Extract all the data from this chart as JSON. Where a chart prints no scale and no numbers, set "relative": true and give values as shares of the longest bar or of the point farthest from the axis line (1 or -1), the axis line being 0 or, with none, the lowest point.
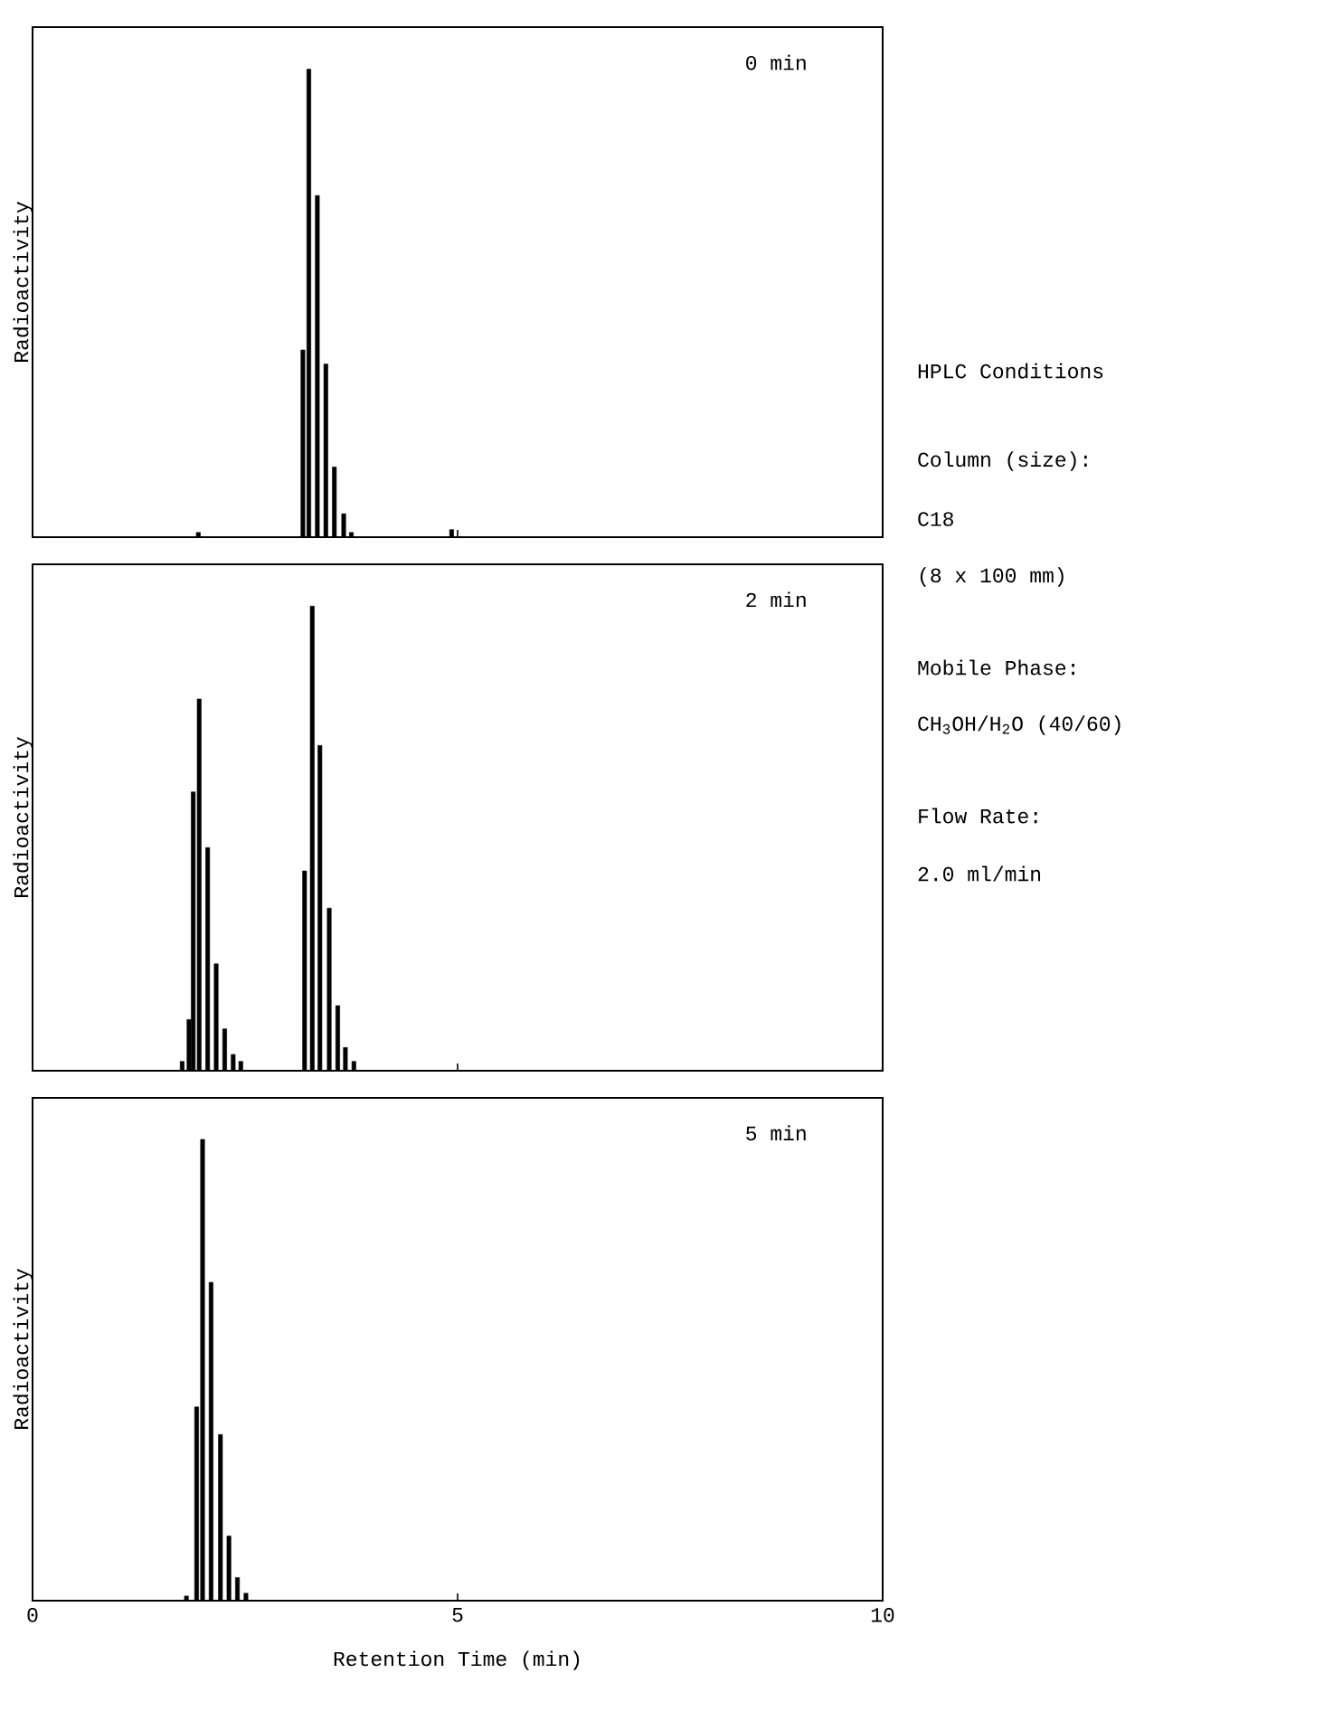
{
  "chart_data": [
    {
      "type": "bar",
      "relative": true,
      "ylabel": "Radioactivity",
      "annotations": [
        "0 min"
      ],
      "color": "#000000",
      "xlim": [
        0,
        10
      ],
      "xticks": [
        0,
        5,
        10
      ],
      "tick_labels": false,
      "x": [
        1.95,
        3.18,
        3.25,
        3.35,
        3.45,
        3.55,
        3.66,
        3.75,
        4.93
      ],
      "values": [
        0.01,
        0.4,
        1,
        0.73,
        0.37,
        0.15,
        0.05,
        0.01,
        0.016
      ]
    },
    {
      "type": "bar",
      "relative": true,
      "ylabel": "Radioactivity",
      "annotations": [
        "2 min"
      ],
      "color": "#000000",
      "xlim": [
        0,
        10
      ],
      "xticks": [
        0,
        5,
        10
      ],
      "tick_labels": false,
      "x": [
        1.76,
        1.84,
        1.89,
        1.96,
        2.06,
        2.16,
        2.26,
        2.36,
        2.45,
        3.2,
        3.29,
        3.38,
        3.49,
        3.59,
        3.68,
        3.78
      ],
      "values": [
        0.02,
        0.11,
        0.6,
        0.8,
        0.48,
        0.23,
        0.09,
        0.035,
        0.02,
        0.43,
        1,
        0.7,
        0.35,
        0.14,
        0.05,
        0.02
      ]
    },
    {
      "type": "bar",
      "relative": true,
      "ylabel": "Radioactivity",
      "xlabel": "Retention Time (min)",
      "annotations": [
        "5 min"
      ],
      "color": "#000000",
      "xlim": [
        0,
        10
      ],
      "xticks": [
        0,
        5,
        10
      ],
      "tick_labels": "x",
      "x": [
        1.81,
        1.93,
        2.0,
        2.1,
        2.21,
        2.31,
        2.41,
        2.51
      ],
      "values": [
        0.01,
        0.42,
        1,
        0.69,
        0.36,
        0.14,
        0.05,
        0.016
      ]
    },
    {
      "type": "other",
      "title": "HPLC Conditions",
      "annotations": [
        "Column (size):",
        "C18",
        "(8 x 100 mm)",
        "Mobile Phase:",
        "CH$_{3}$OH/H$_{2}$O (40/60)",
        "Flow Rate:",
        "2.0 ml/min"
      ]
    }
  ]
}
